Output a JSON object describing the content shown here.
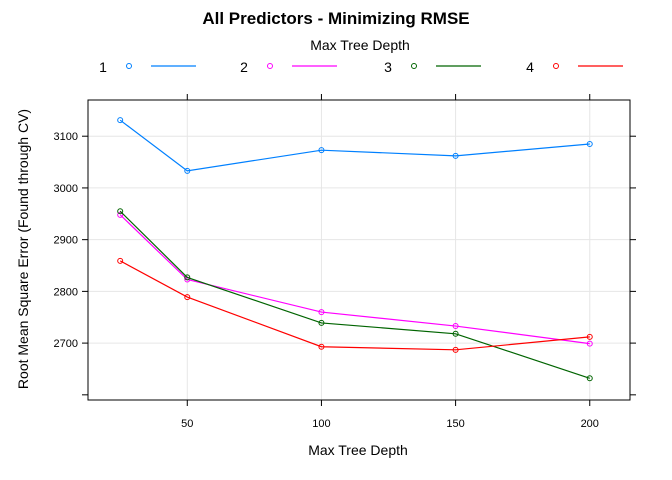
{
  "chart_data": {
    "type": "line",
    "title": "All Predictors - Minimizing RMSE",
    "xlabel": "Max Tree Depth",
    "ylabel": "Root Mean Square Error (Found through CV)",
    "legend_title": "Max Tree Depth",
    "legend_placement": "top",
    "grid": true,
    "xlim": [
      13,
      215
    ],
    "ylim": [
      2590,
      3170
    ],
    "x_ticks": [
      50,
      100,
      150,
      200
    ],
    "y_ticks": [
      2700,
      2800,
      2900,
      3000,
      3100
    ],
    "x": [
      25,
      50,
      100,
      150,
      200
    ],
    "series": [
      {
        "name": "1",
        "color": "#0080ff",
        "values": [
          3131,
          3033,
          3073,
          3062,
          3085
        ]
      },
      {
        "name": "2",
        "color": "#ff00ff",
        "values": [
          2948,
          2823,
          2760,
          2733,
          2699
        ]
      },
      {
        "name": "3",
        "color": "#006400",
        "values": [
          2955,
          2827,
          2739,
          2718,
          2632
        ]
      },
      {
        "name": "4",
        "color": "#ff0000",
        "values": [
          2859,
          2789,
          2693,
          2687,
          2712
        ]
      }
    ]
  }
}
